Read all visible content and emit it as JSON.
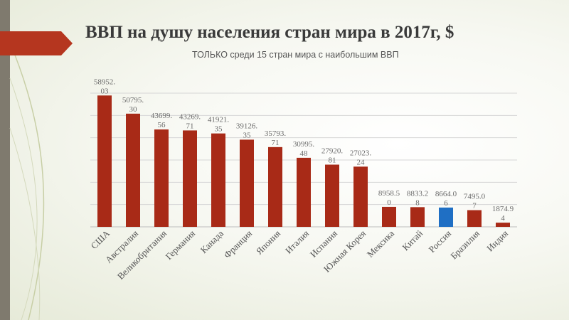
{
  "slide": {
    "title": "ВВП на душу населения стран мира в 2017г, $",
    "subtitle": "ТОЛЬКО среди 15 стран мира с наибольшим ВВП"
  },
  "colors": {
    "bar": "#a82a17",
    "highlight": "#1f6fc4",
    "banner": "#b5361f",
    "grid": "#d6d6d6",
    "axis": "#bdbdbd"
  },
  "chart_data": {
    "type": "bar",
    "title": "ВВП на душу населения стран мира в 2017г, $",
    "subtitle": "ТОЛЬКО среди 15 стран мира с наибольшим ВВП",
    "categories": [
      "США",
      "Австралия",
      "Великобритания",
      "Германия",
      "Канада",
      "Франция",
      "Япония",
      "Италия",
      "Испания",
      "Южная Корея",
      "Мексика",
      "Китай",
      "Россия",
      "Бразилия",
      "Индия"
    ],
    "values": [
      58952.03,
      50795.3,
      43699.56,
      43269.71,
      41921.35,
      39126.35,
      35793.71,
      30995.48,
      27920.81,
      27023.24,
      8958.5,
      8833.28,
      8664.06,
      7495.07,
      1874.94
    ],
    "value_labels": [
      [
        "58952.",
        "03"
      ],
      [
        "50795.",
        "30"
      ],
      [
        "43699.",
        "56"
      ],
      [
        "43269.",
        "71"
      ],
      [
        "41921.",
        "35"
      ],
      [
        "39126.",
        "35"
      ],
      [
        "35793.",
        "71"
      ],
      [
        "30995.",
        "48"
      ],
      [
        "27920.",
        "81"
      ],
      [
        "27023.",
        "24"
      ],
      [
        "8958.5",
        "0"
      ],
      [
        "8833.2",
        "8"
      ],
      [
        "8664.0",
        "6"
      ],
      [
        "7495.0",
        "7"
      ],
      [
        "1874.9",
        "4"
      ]
    ],
    "highlight_index": 12,
    "ylim": [
      0,
      60000
    ],
    "grid": true,
    "xlabel": "",
    "ylabel": ""
  }
}
